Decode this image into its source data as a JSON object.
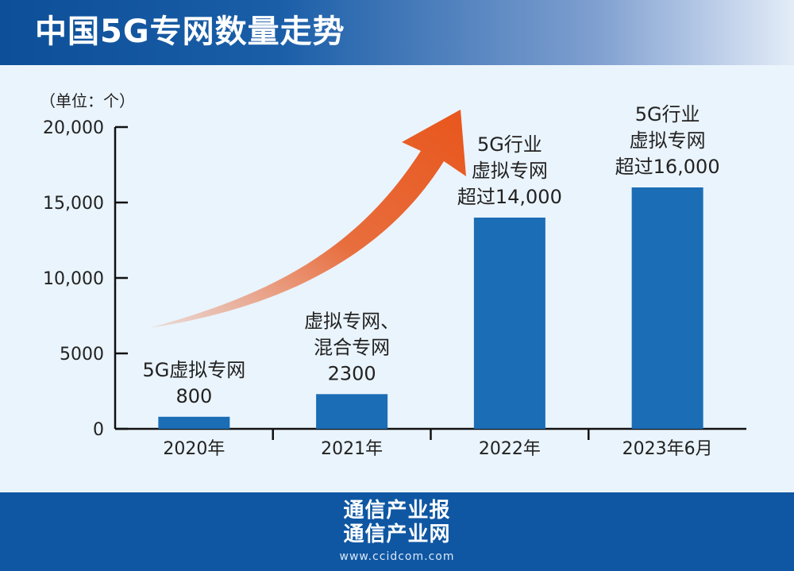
{
  "header": {
    "title": "中国5G专网数量走势"
  },
  "chart_data": {
    "type": "bar",
    "unit_label": "（单位：个）",
    "categories": [
      "2020年",
      "2021年",
      "2022年",
      "2023年6月"
    ],
    "values": [
      800,
      2300,
      14000,
      16000
    ],
    "value_labels": [
      [
        "5G虚拟专网",
        "800"
      ],
      [
        "虚拟专网、",
        "混合专网",
        "2300"
      ],
      [
        "5G行业",
        "虚拟专网",
        "超过14,000"
      ],
      [
        "5G行业",
        "虚拟专网",
        "超过16,000"
      ]
    ],
    "yticks": [
      0,
      5000,
      10000,
      15000,
      20000
    ],
    "ytick_labels": [
      "0",
      "5000",
      "10,000",
      "15,000",
      "20,000"
    ],
    "ylim": [
      0,
      20000
    ],
    "bar_color": "#1b6db5",
    "arrow_color": "#e8561c",
    "grid": false
  },
  "footer": {
    "line1": "通信产业报",
    "line2": "通信产业网",
    "url": "www.ccidcom.com"
  }
}
